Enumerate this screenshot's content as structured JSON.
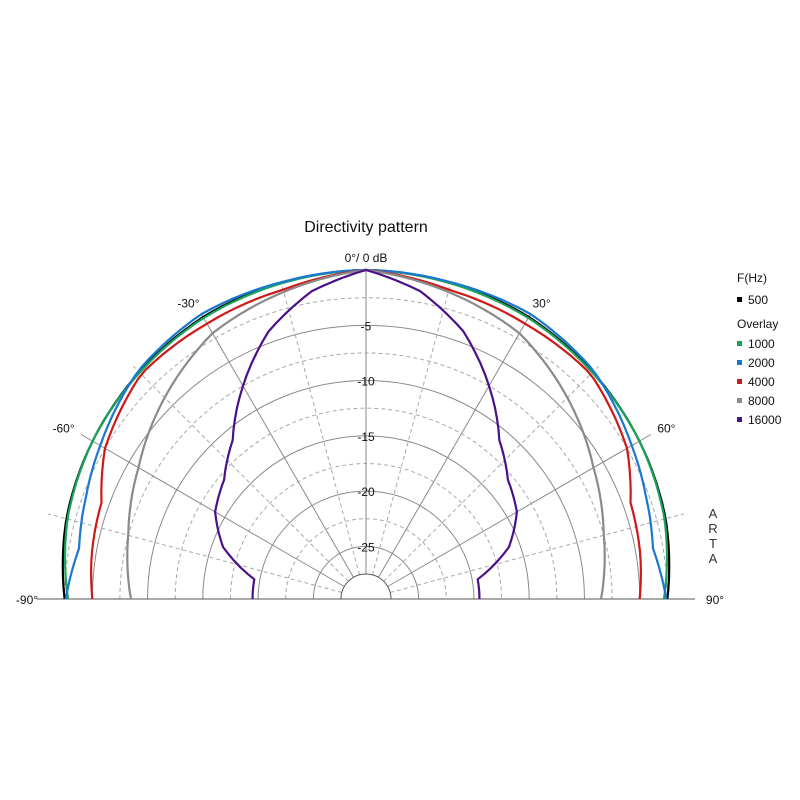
{
  "chart_data": {
    "type": "line",
    "subtype": "polar-half",
    "title": "Directivity pattern",
    "top_label": "0°/ 0 dB",
    "angle_labels": [
      {
        "angle": -90,
        "text": "-90°"
      },
      {
        "angle": -60,
        "text": "-60°"
      },
      {
        "angle": -30,
        "text": "-30°"
      },
      {
        "angle": 30,
        "text": "30°"
      },
      {
        "angle": 60,
        "text": "60°"
      },
      {
        "angle": 90,
        "text": "90°"
      }
    ],
    "radial_labels": [
      {
        "db": -5,
        "text": "-5"
      },
      {
        "db": -10,
        "text": "-10"
      },
      {
        "db": -15,
        "text": "-15"
      },
      {
        "db": -20,
        "text": "-20"
      },
      {
        "db": -25,
        "text": "-25"
      }
    ],
    "rlim": [
      -27.5,
      0
    ],
    "grid": true,
    "legend": {
      "position": "right",
      "header": "F(Hz)",
      "overlay_label": "Overlay",
      "items": [
        {
          "name": "500",
          "color": "#000000"
        },
        {
          "name": "1000",
          "color": "#1aa35a"
        },
        {
          "name": "2000",
          "color": "#1a78d0"
        },
        {
          "name": "4000",
          "color": "#d01818"
        },
        {
          "name": "8000",
          "color": "#8a8a8a"
        },
        {
          "name": "16000",
          "color": "#4a1088"
        }
      ]
    },
    "series": [
      {
        "name": "500",
        "color": "#000000",
        "angles": [
          0,
          30,
          60,
          75,
          90
        ],
        "db": [
          0,
          -0.3,
          -1.2,
          -1.7,
          -2.5
        ]
      },
      {
        "name": "1000",
        "color": "#1aa35a",
        "angles": [
          0,
          30,
          60,
          75,
          90
        ],
        "db": [
          0,
          -0.4,
          -1.2,
          -1.8,
          -2.8
        ]
      },
      {
        "name": "2000",
        "color": "#1a78d0",
        "angles": [
          0,
          15,
          30,
          45,
          60,
          70,
          80,
          90
        ],
        "db": [
          0,
          -0.1,
          0,
          -0.6,
          -2,
          -2.8,
          -3.4,
          -2.6
        ]
      },
      {
        "name": "4000",
        "color": "#d01818",
        "angles": [
          0,
          15,
          30,
          45,
          60,
          70,
          80,
          90
        ],
        "db": [
          0,
          -0.8,
          -1,
          -1,
          -2.5,
          -4.3,
          -4.6,
          -5
        ]
      },
      {
        "name": "8000",
        "color": "#8a8a8a",
        "angles": [
          0,
          15,
          30,
          45,
          60,
          75,
          90
        ],
        "db": [
          0,
          -1,
          -2,
          -4,
          -6,
          -7.5,
          -8.5
        ]
      },
      {
        "name": "16000",
        "color": "#4a1088",
        "angles": [
          0,
          10,
          20,
          30,
          40,
          50,
          60,
          70,
          80,
          90
        ],
        "db": [
          0,
          -1.5,
          -4,
          -7.5,
          -11,
          -13,
          -14,
          -16,
          -19.5,
          -19.5
        ]
      }
    ]
  },
  "brand": [
    "A",
    "R",
    "T",
    "A"
  ]
}
